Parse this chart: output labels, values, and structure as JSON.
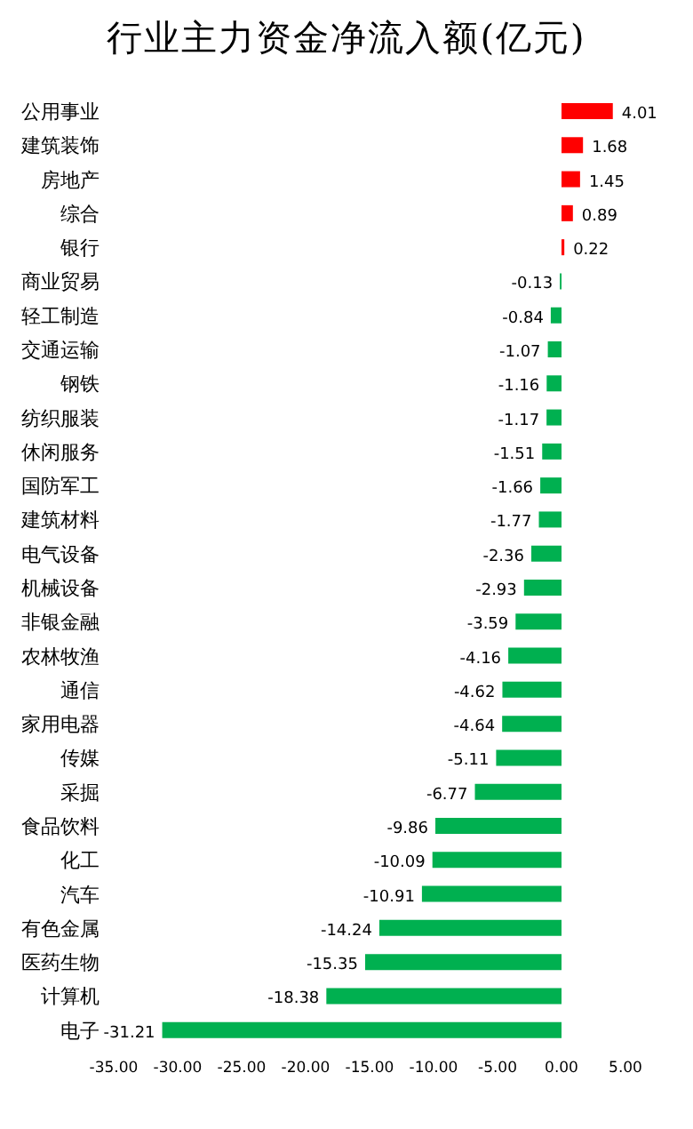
{
  "chart_data": {
    "type": "bar",
    "orientation": "horizontal",
    "title": "行业主力资金净流入额(亿元)",
    "categories": [
      "公用事业",
      "建筑装饰",
      "房地产",
      "综合",
      "银行",
      "商业贸易",
      "轻工制造",
      "交通运输",
      "钢铁",
      "纺织服装",
      "休闲服务",
      "国防军工",
      "建筑材料",
      "电气设备",
      "机械设备",
      "非银金融",
      "农林牧渔",
      "通信",
      "家用电器",
      "传媒",
      "采掘",
      "食品饮料",
      "化工",
      "汽车",
      "有色金属",
      "医药生物",
      "计算机",
      "电子"
    ],
    "values": [
      4.01,
      1.68,
      1.45,
      0.89,
      0.22,
      -0.13,
      -0.84,
      -1.07,
      -1.16,
      -1.17,
      -1.51,
      -1.66,
      -1.77,
      -2.36,
      -2.93,
      -3.59,
      -4.16,
      -4.62,
      -4.64,
      -5.11,
      -6.77,
      -9.86,
      -10.09,
      -10.91,
      -14.24,
      -15.35,
      -18.38,
      -31.21
    ],
    "colors": [
      "#ff0000",
      "#ff0000",
      "#ff0000",
      "#ff0000",
      "#ff0000",
      "#00b050",
      "#00b050",
      "#00b050",
      "#00b050",
      "#00b050",
      "#00b050",
      "#00b050",
      "#00b050",
      "#00b050",
      "#00b050",
      "#00b050",
      "#00b050",
      "#00b050",
      "#00b050",
      "#00b050",
      "#00b050",
      "#00b050",
      "#00b050",
      "#00b050",
      "#00b050",
      "#00b050",
      "#00b050",
      "#00b050"
    ],
    "xlim": [
      -35,
      5
    ],
    "xticks": [
      {
        "value": -35,
        "label": "-35.00"
      },
      {
        "value": -30,
        "label": "-30.00"
      },
      {
        "value": -25,
        "label": "-25.00"
      },
      {
        "value": -20,
        "label": "-20.00"
      },
      {
        "value": -15,
        "label": "-15.00"
      },
      {
        "value": -10,
        "label": "-10.00"
      },
      {
        "value": -5,
        "label": "-5.00"
      },
      {
        "value": 0,
        "label": "0.00"
      },
      {
        "value": 5,
        "label": "5.00"
      }
    ],
    "data_labels": true,
    "grid": false,
    "legend": false
  }
}
